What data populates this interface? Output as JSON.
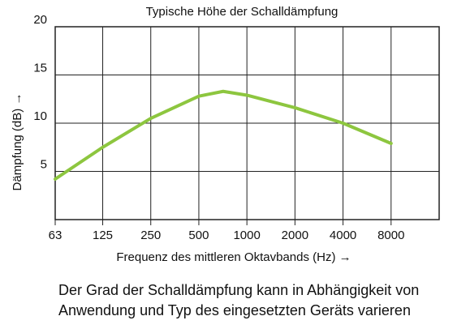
{
  "chart_data": {
    "type": "line",
    "title": "Typische Höhe der Schalldämpfung",
    "x_label": "Frequenz des mittleren Oktavbands (Hz) →",
    "y_label": "Dämpfung (dB) →",
    "x": [
      63,
      125,
      250,
      500,
      710,
      1000,
      2000,
      4000,
      8000
    ],
    "series": [
      {
        "name": "Schalldämpfung",
        "color": "#8dc63f",
        "values": [
          4.2,
          7.5,
          10.5,
          12.8,
          13.3,
          12.9,
          11.6,
          10.0,
          7.9
        ]
      }
    ],
    "xscale": "log",
    "xlim": [
      63,
      16000
    ],
    "xticks": [
      63,
      125,
      250,
      500,
      1000,
      2000,
      4000,
      8000
    ],
    "ylim": [
      0,
      20
    ],
    "yticks": [
      5,
      10,
      15,
      20
    ],
    "grid": true
  },
  "caption": [
    "Der Grad der Schalldämpfung kann in Abhängigkeit von",
    "Anwendung und Typ des eingesetzten Geräts varieren"
  ]
}
